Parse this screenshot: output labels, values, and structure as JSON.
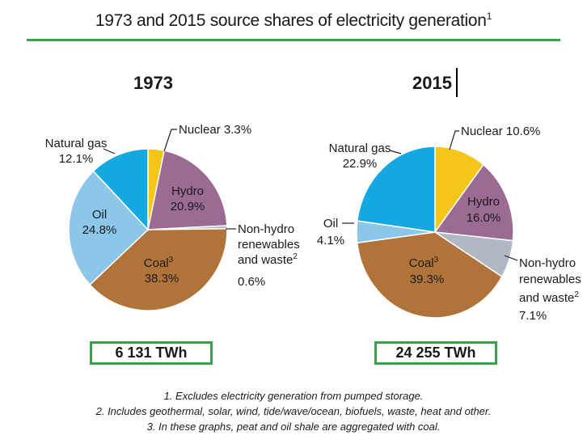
{
  "title": "1973 and 2015 source shares of electricity generation",
  "title_sup": "1",
  "chart_data": [
    {
      "type": "pie",
      "title": "1973",
      "total": "6 131 TWh",
      "slices": [
        {
          "name": "Nuclear",
          "value": 3.3,
          "label": "3.3%",
          "color": "#f5c518"
        },
        {
          "name": "Hydro",
          "value": 20.9,
          "label": "20.9%",
          "color": "#9b6b94"
        },
        {
          "name": "Non-hydro renewables and waste",
          "value": 0.6,
          "label": "0.6%",
          "color": "#b0b8c4"
        },
        {
          "name": "Coal",
          "value": 38.3,
          "label": "38.3%",
          "color": "#b0743b"
        },
        {
          "name": "Oil",
          "value": 24.8,
          "label": "24.8%",
          "color": "#8cc6e8"
        },
        {
          "name": "Natural gas",
          "value": 12.1,
          "label": "12.1%",
          "color": "#16a8e0"
        }
      ]
    },
    {
      "type": "pie",
      "title": "2015",
      "total": "24 255 TWh",
      "slices": [
        {
          "name": "Nuclear",
          "value": 10.6,
          "label": "10.6%",
          "color": "#f5c518"
        },
        {
          "name": "Hydro",
          "value": 16.0,
          "label": "16.0%",
          "color": "#9b6b94"
        },
        {
          "name": "Non-hydro renewables and waste",
          "value": 7.1,
          "label": "7.1%",
          "color": "#b0b8c4"
        },
        {
          "name": "Coal",
          "value": 39.3,
          "label": "39.3%",
          "color": "#b0743b"
        },
        {
          "name": "Oil",
          "value": 4.1,
          "label": "4.1%",
          "color": "#8cc6e8"
        },
        {
          "name": "Natural gas",
          "value": 22.9,
          "label": "22.9%",
          "color": "#16a8e0"
        }
      ]
    }
  ],
  "labels": {
    "nuclear": "Nuclear",
    "hydro": "Hydro",
    "nonhydro_1": "Non-hydro",
    "nonhydro_2": "renewables",
    "nonhydro_3": "and waste",
    "nonhydro_sup": "2",
    "coal": "Coal",
    "coal_sup": "3",
    "oil": "Oil",
    "natural_gas": "Natural gas"
  },
  "notes": [
    "1. Excludes electricity generation from pumped storage.",
    "2. Includes geothermal, solar, wind, tide/wave/ocean, biofuels, waste, heat and other.",
    "3. In these graphs, peat and oil shale are aggregated with coal."
  ]
}
